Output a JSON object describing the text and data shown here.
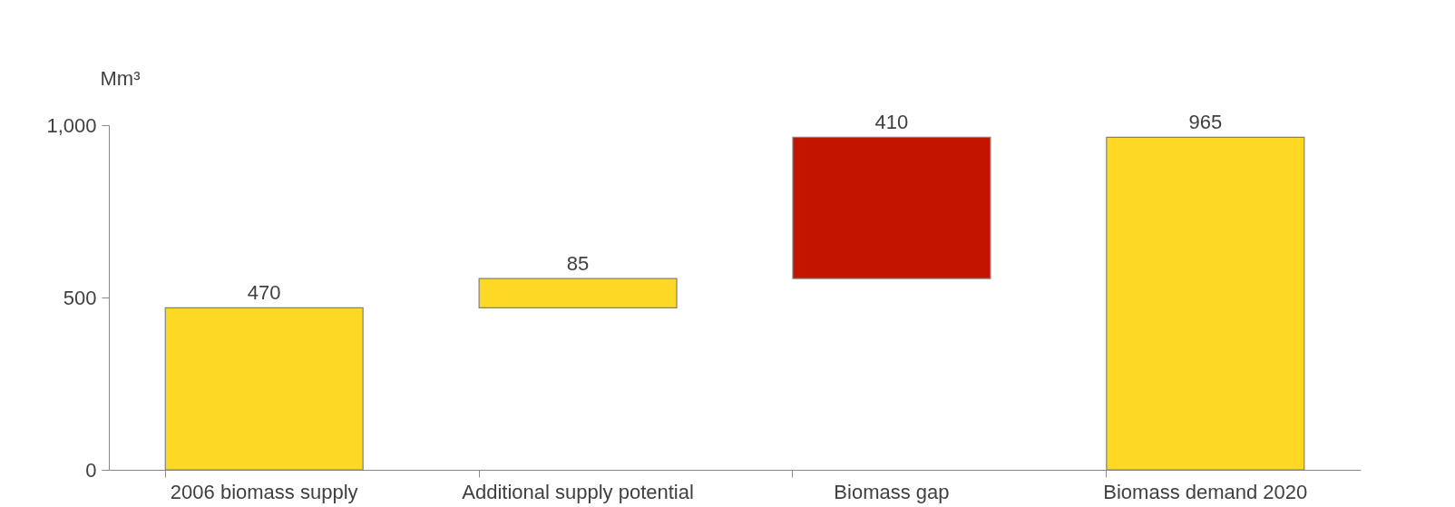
{
  "chart_data": {
    "type": "bar",
    "ylabel": "Mm³",
    "categories": [
      "2006 biomass supply",
      "Additional supply potential",
      "Biomass gap",
      "Biomass demand 2020"
    ],
    "values": [
      470,
      85,
      410,
      965
    ],
    "base": [
      0,
      470,
      555,
      0
    ],
    "colors": [
      "#fdd825",
      "#fdd825",
      "#c31400",
      "#fdd825"
    ],
    "ylim": [
      0,
      1000
    ],
    "yticks": [
      0,
      500,
      {
        "value": 1000,
        "label": "1,000"
      }
    ],
    "data_labels": true,
    "grid": false
  }
}
